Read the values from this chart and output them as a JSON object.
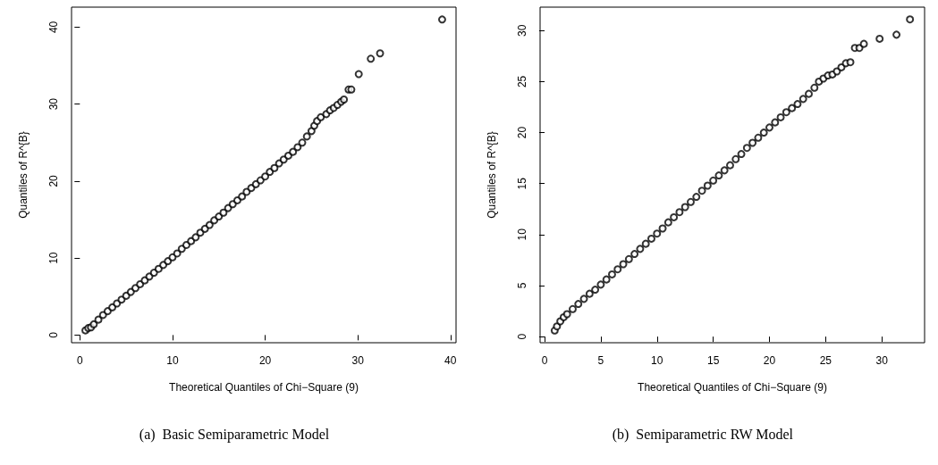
{
  "chart_data": [
    {
      "type": "scatter",
      "xlabel": "Theoretical Quantiles of Chi−Square (9)",
      "ylabel": "Quantiles of R^{B}",
      "marker": "circle",
      "annotations": [
        "(a)  Basic Semiparametric Model"
      ],
      "xlim": [
        -0.9,
        40.6
      ],
      "ylim": [
        -1.0,
        42.6
      ],
      "xticks": [
        0,
        10,
        20,
        30,
        40
      ],
      "yticks": [
        0,
        10,
        20,
        30,
        40
      ],
      "series": [
        {
          "color": "#000000",
          "x": [
            0.6,
            0.9,
            1.2,
            1.5,
            2,
            2.5,
            3,
            3.5,
            4,
            4.5,
            5,
            5.5,
            6,
            6.5,
            7,
            7.5,
            8,
            8.5,
            9,
            9.5,
            10,
            10.5,
            11,
            11.5,
            12,
            12.5,
            13,
            13.5,
            14,
            14.5,
            15,
            15.5,
            16,
            16.5,
            17,
            17.5,
            18,
            18.5,
            19,
            19.5,
            20,
            20.5,
            21,
            21.5,
            22,
            22.5,
            23,
            23.5,
            24,
            24.5,
            25,
            25.3,
            25.6,
            26,
            26.6,
            27,
            27.4,
            27.8,
            28.2,
            28.5,
            29,
            29.3,
            30.1,
            31.4,
            32.4,
            39.1
          ],
          "values": [
            0.6,
            0.9,
            1.0,
            1.4,
            2,
            2.6,
            3.1,
            3.6,
            4.1,
            4.6,
            5.1,
            5.6,
            6.1,
            6.6,
            7.1,
            7.6,
            8.1,
            8.6,
            9.1,
            9.6,
            10.1,
            10.6,
            11.2,
            11.7,
            12.2,
            12.7,
            13.3,
            13.8,
            14.3,
            14.9,
            15.4,
            15.9,
            16.5,
            17,
            17.5,
            18,
            18.6,
            19.1,
            19.6,
            20.1,
            20.6,
            21.2,
            21.7,
            22.3,
            22.8,
            23.3,
            23.8,
            24.4,
            25,
            25.8,
            26.5,
            27.2,
            27.8,
            28.3,
            28.7,
            29.2,
            29.5,
            29.9,
            30.3,
            30.6,
            31.9,
            31.9,
            33.9,
            35.9,
            36.6,
            41
          ]
        }
      ]
    },
    {
      "type": "scatter",
      "xlabel": "Theoretical Quantiles of Chi−Square (9)",
      "ylabel": "Quantiles of R^{B}",
      "marker": "circle",
      "annotations": [
        "(b)  Semiparametric RW Model"
      ],
      "xlim": [
        -0.4,
        33.8
      ],
      "ylim": [
        -0.6,
        32.3
      ],
      "xticks": [
        0,
        5,
        10,
        15,
        20,
        25,
        30
      ],
      "yticks": [
        0,
        5,
        10,
        15,
        20,
        25,
        30
      ],
      "series": [
        {
          "color": "#000000",
          "x": [
            0.9,
            1.1,
            1.4,
            1.7,
            2,
            2.5,
            3,
            3.5,
            4,
            4.5,
            5,
            5.5,
            6,
            6.5,
            7,
            7.5,
            8,
            8.5,
            9,
            9.5,
            10,
            10.5,
            11,
            11.5,
            12,
            12.5,
            13,
            13.5,
            14,
            14.5,
            15,
            15.5,
            16,
            16.5,
            17,
            17.5,
            18,
            18.5,
            19,
            19.5,
            20,
            20.5,
            21,
            21.5,
            22,
            22.5,
            23,
            23.5,
            24,
            24.4,
            24.8,
            25.2,
            25.6,
            26,
            26.4,
            26.8,
            27.2,
            27.6,
            28,
            28.4,
            29.8,
            31.3,
            32.5
          ],
          "values": [
            0.6,
            1,
            1.5,
            1.9,
            2.2,
            2.7,
            3.2,
            3.7,
            4.2,
            4.6,
            5.1,
            5.6,
            6.1,
            6.6,
            7.1,
            7.6,
            8.1,
            8.6,
            9.1,
            9.6,
            10.1,
            10.6,
            11.2,
            11.7,
            12.2,
            12.7,
            13.2,
            13.7,
            14.3,
            14.8,
            15.3,
            15.8,
            16.3,
            16.8,
            17.4,
            17.9,
            18.5,
            19,
            19.5,
            20,
            20.5,
            21,
            21.5,
            22,
            22.4,
            22.8,
            23.3,
            23.8,
            24.4,
            25,
            25.3,
            25.6,
            25.7,
            26,
            26.4,
            26.8,
            26.9,
            28.3,
            28.3,
            28.7,
            29.2,
            29.6,
            31.1
          ]
        }
      ]
    }
  ]
}
